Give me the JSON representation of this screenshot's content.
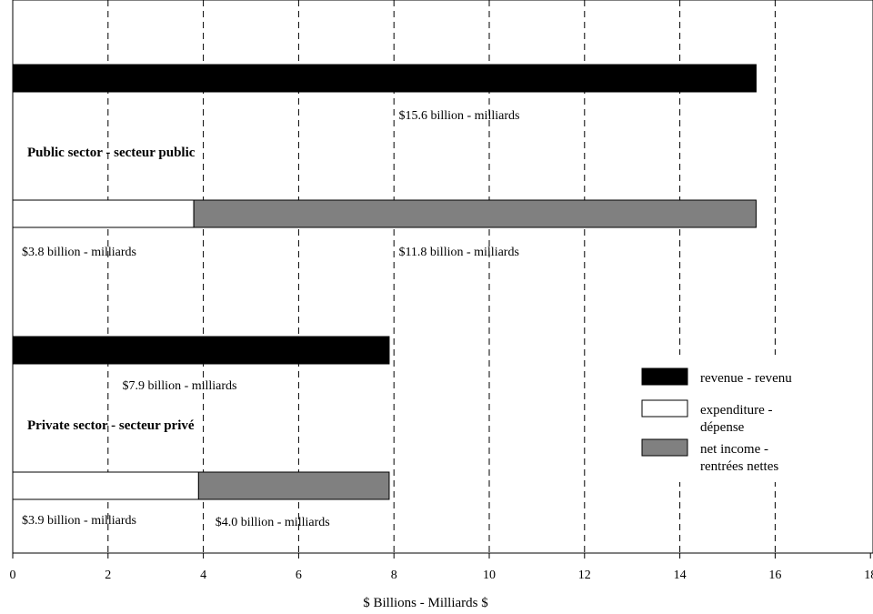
{
  "chart_data": {
    "type": "bar",
    "orientation": "horizontal",
    "stacked": true,
    "xlabel": "$ Billions - Milliards $",
    "xlim": [
      0,
      18
    ],
    "x_ticks": [
      0,
      2,
      4,
      6,
      8,
      10,
      12,
      14,
      16,
      18
    ],
    "x_tick_labels": [
      "0",
      "2",
      "4",
      "6",
      "8",
      "10",
      "12",
      "14",
      "16",
      "18"
    ],
    "grid": "vertical dashed",
    "legend_position": "right",
    "colors": {
      "revenue": "#000000",
      "expenditure": "#ffffff",
      "net_income": "#808080"
    },
    "legend": [
      {
        "key": "revenue",
        "lines": [
          "revenue - revenu"
        ]
      },
      {
        "key": "expenditure",
        "lines": [
          "expenditure -",
          "dépense"
        ]
      },
      {
        "key": "net_income",
        "lines": [
          "net income -",
          "rentrées nettes"
        ]
      }
    ],
    "groups": [
      {
        "label": "Public sector - secteur public",
        "revenue": {
          "value": 15.6,
          "label": "$15.6 billion - milliards"
        },
        "expenditure": {
          "value": 3.8,
          "label": "$3.8 billion - milliards"
        },
        "net_income": {
          "value": 11.8,
          "label": "$11.8 billion - milliards"
        }
      },
      {
        "label": "Private sector - secteur privé",
        "revenue": {
          "value": 7.9,
          "label": "$7.9 billion - milliards"
        },
        "expenditure": {
          "value": 3.9,
          "label": "$3.9 billion - milliards"
        },
        "net_income": {
          "value": 4.0,
          "label": "$4.0 billion - milliards"
        }
      }
    ]
  }
}
